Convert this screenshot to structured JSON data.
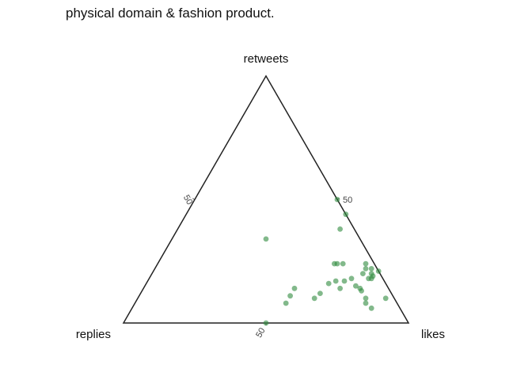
{
  "chart_data": {
    "type": "scatter",
    "subtype": "ternary",
    "title": "physical domain & fashion product.",
    "axes": {
      "top": "retweets",
      "left": "replies",
      "right": "likes"
    },
    "tick_values": [
      50
    ],
    "grid": false,
    "point_color": "#2e8b3e",
    "point_opacity": 0.6,
    "points": [
      {
        "likes": 50,
        "retweets": 50,
        "replies": 0
      },
      {
        "likes": 56,
        "retweets": 44,
        "replies": 0
      },
      {
        "likes": 57,
        "retweets": 38,
        "replies": 5
      },
      {
        "likes": 33,
        "retweets": 34,
        "replies": 33
      },
      {
        "likes": 50,
        "retweets": 0,
        "replies": 50
      },
      {
        "likes": 62,
        "retweets": 24,
        "replies": 14
      },
      {
        "likes": 63,
        "retweets": 24,
        "replies": 13
      },
      {
        "likes": 65,
        "retweets": 24,
        "replies": 11
      },
      {
        "likes": 73,
        "retweets": 24,
        "replies": 3
      },
      {
        "likes": 79,
        "retweets": 21,
        "replies": 0
      },
      {
        "likes": 74,
        "retweets": 22,
        "replies": 4
      },
      {
        "likes": 76,
        "retweets": 22,
        "replies": 2
      },
      {
        "likes": 74,
        "retweets": 20,
        "replies": 6
      },
      {
        "likes": 77,
        "retweets": 20,
        "replies": 3
      },
      {
        "likes": 77,
        "retweets": 18,
        "replies": 5
      },
      {
        "likes": 78,
        "retweets": 19,
        "replies": 3
      },
      {
        "likes": 78,
        "retweets": 18,
        "replies": 4
      },
      {
        "likes": 71,
        "retweets": 18,
        "replies": 11
      },
      {
        "likes": 69,
        "retweets": 17,
        "replies": 14
      },
      {
        "likes": 66,
        "retweets": 17,
        "replies": 17
      },
      {
        "likes": 64,
        "retweets": 16,
        "replies": 20
      },
      {
        "likes": 69,
        "retweets": 14,
        "replies": 17
      },
      {
        "likes": 74,
        "retweets": 15,
        "replies": 11
      },
      {
        "likes": 76,
        "retweets": 14,
        "replies": 10
      },
      {
        "likes": 77,
        "retweets": 13,
        "replies": 10
      },
      {
        "likes": 63,
        "retweets": 12,
        "replies": 25
      },
      {
        "likes": 62,
        "retweets": 10,
        "replies": 28
      },
      {
        "likes": 53,
        "retweets": 14,
        "replies": 33
      },
      {
        "likes": 53,
        "retweets": 11,
        "replies": 36
      },
      {
        "likes": 53,
        "retweets": 8,
        "replies": 39
      },
      {
        "likes": 80,
        "retweets": 10,
        "replies": 10
      },
      {
        "likes": 81,
        "retweets": 8,
        "replies": 11
      },
      {
        "likes": 84,
        "retweets": 6,
        "replies": 10
      },
      {
        "likes": 87,
        "retweets": 10,
        "replies": 3
      }
    ]
  }
}
